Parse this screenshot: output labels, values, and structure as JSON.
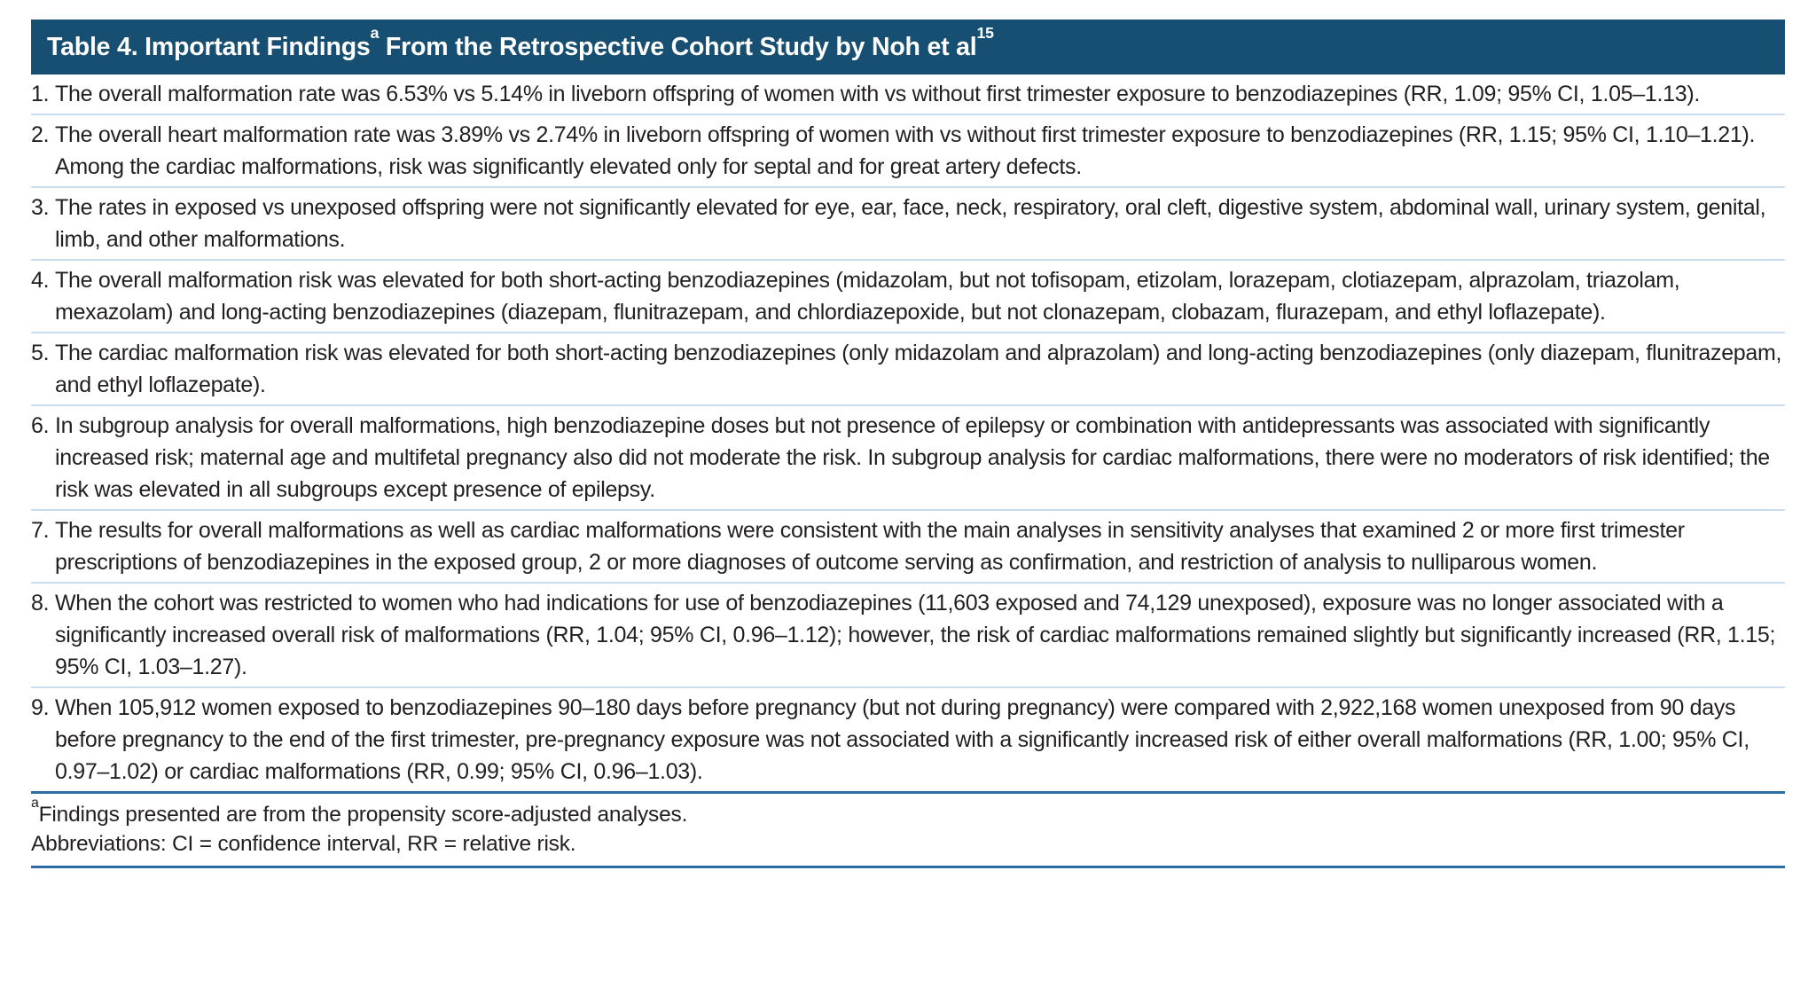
{
  "table": {
    "title_prefix": "Table 4. Important Findings",
    "title_sup_a": "a",
    "title_rest": " From the Retrospective Cohort Study by Noh et al",
    "title_sup_ref": "15",
    "items": [
      {
        "num": "1.",
        "text": "The overall malformation rate was 6.53% vs 5.14% in liveborn offspring of women with vs without first trimester exposure to benzodiazepines (RR, 1.09; 95% CI, 1.05–1.13)."
      },
      {
        "num": "2.",
        "text": "The overall heart malformation rate was 3.89% vs 2.74% in liveborn offspring of women with vs without first trimester exposure to benzodiazepines (RR, 1.15; 95% CI, 1.10–1.21). Among the cardiac malformations, risk was significantly elevated only for septal and for great artery defects."
      },
      {
        "num": "3.",
        "text": "The rates in exposed vs unexposed offspring were not significantly elevated for eye, ear, face, neck, respiratory, oral cleft, digestive system, abdominal wall, urinary system, genital, limb, and other malformations."
      },
      {
        "num": "4.",
        "text": "The overall malformation risk was elevated for both short-acting benzodiazepines (midazolam, but not tofisopam, etizolam, lorazepam, clotiazepam, alprazolam, triazolam, mexazolam) and long-acting benzodiazepines (diazepam, flunitrazepam, and chlordiazepoxide, but not clonazepam, clobazam, flurazepam, and ethyl loflazepate)."
      },
      {
        "num": "5.",
        "text": "The cardiac malformation risk was elevated for both short-acting benzodiazepines (only midazolam and alprazolam) and long-acting benzodiazepines (only diazepam, flunitrazepam, and ethyl loflazepate)."
      },
      {
        "num": "6.",
        "text": "In subgroup analysis for overall malformations, high benzodiazepine doses but not presence of epilepsy or combination with antidepressants was associated with significantly increased risk; maternal age and multifetal pregnancy also did not moderate the risk. In subgroup analysis for cardiac malformations, there were no moderators of risk identified; the risk was elevated in all subgroups except presence of epilepsy."
      },
      {
        "num": "7.",
        "text": "The results for overall malformations as well as cardiac malformations were consistent with the main analyses in sensitivity analyses that examined 2 or more first trimester prescriptions of benzodiazepines in the exposed group, 2 or more diagnoses of outcome serving as confirmation, and restriction of analysis to nulliparous women."
      },
      {
        "num": "8.",
        "text": "When the cohort was restricted to women who had indications for use of benzodiazepines (11,603 exposed and 74,129 unexposed), exposure was no longer associated with a significantly increased overall risk of malformations (RR, 1.04; 95% CI, 0.96–1.12); however, the risk of cardiac malformations remained slightly but significantly increased (RR, 1.15; 95% CI, 1.03–1.27)."
      },
      {
        "num": "9.",
        "text": "When 105,912 women exposed to benzodiazepines 90–180 days before pregnancy (but not during pregnancy) were compared with 2,922,168 women unexposed from 90 days before pregnancy to the end of the first trimester, pre-pregnancy exposure was not associated with a significantly increased risk of either overall malformations (RR, 1.00; 95% CI, 0.97–1.02) or cardiac malformations (RR, 0.99; 95% CI, 0.96–1.03)."
      }
    ],
    "footnote_marker": "a",
    "footnote_text": "Findings presented are from the propensity score-adjusted analyses.",
    "abbreviations": "Abbreviations: CI = confidence interval, RR = relative risk."
  },
  "colors": {
    "header_bg": "#174f73",
    "header_text": "#ffffff",
    "thin_rule": "#c9ddee",
    "thick_rule": "#2d6da3",
    "body_text": "#231f20"
  }
}
